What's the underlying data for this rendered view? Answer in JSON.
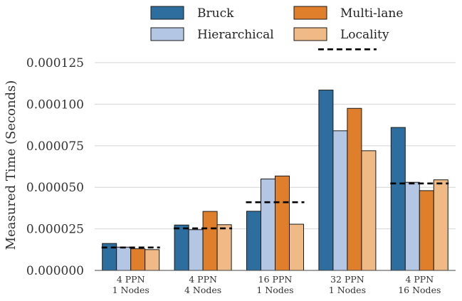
{
  "chart_data": {
    "type": "bar",
    "ylabel": "Measured Time (Seconds)",
    "ylim": [
      0,
      0.000137
    ],
    "yticks": [
      "0.000000",
      "0.000025",
      "0.000050",
      "0.000075",
      "0.000100",
      "0.000125"
    ],
    "ytick_values": [
      0,
      2.5e-05,
      5e-05,
      7.5e-05,
      0.0001,
      0.000125
    ],
    "grid": "horizontal",
    "legend_placement": "top-center",
    "categories": [
      [
        "4 PPN",
        "1 Nodes"
      ],
      [
        "4 PPN",
        "4 Nodes"
      ],
      [
        "16 PPN",
        "1 Nodes"
      ],
      [
        "32 PPN",
        "1 Nodes"
      ],
      [
        "4 PPN",
        "16 Nodes"
      ]
    ],
    "series": [
      {
        "name": "Bruck",
        "color": "#2e6e9e",
        "values": [
          1.62e-05,
          2.73e-05,
          3.56e-05,
          0.0001085,
          8.6e-05
        ]
      },
      {
        "name": "Hierarchical",
        "color": "#b3c6e3",
        "values": [
          1.4e-05,
          2.45e-05,
          5.5e-05,
          8.4e-05,
          5.3e-05
        ]
      },
      {
        "name": "Multi-lane",
        "color": "#e07f2b",
        "values": [
          1.3e-05,
          3.55e-05,
          5.68e-05,
          9.75e-05,
          4.8e-05
        ]
      },
      {
        "name": "Locality",
        "color": "#f0ba86",
        "values": [
          1.25e-05,
          2.75e-05,
          2.78e-05,
          7.2e-05,
          5.45e-05
        ]
      }
    ],
    "reference_lines": [
      1.38e-05,
      2.53e-05,
      4.1e-05,
      0.000133,
      5.23e-05
    ]
  }
}
